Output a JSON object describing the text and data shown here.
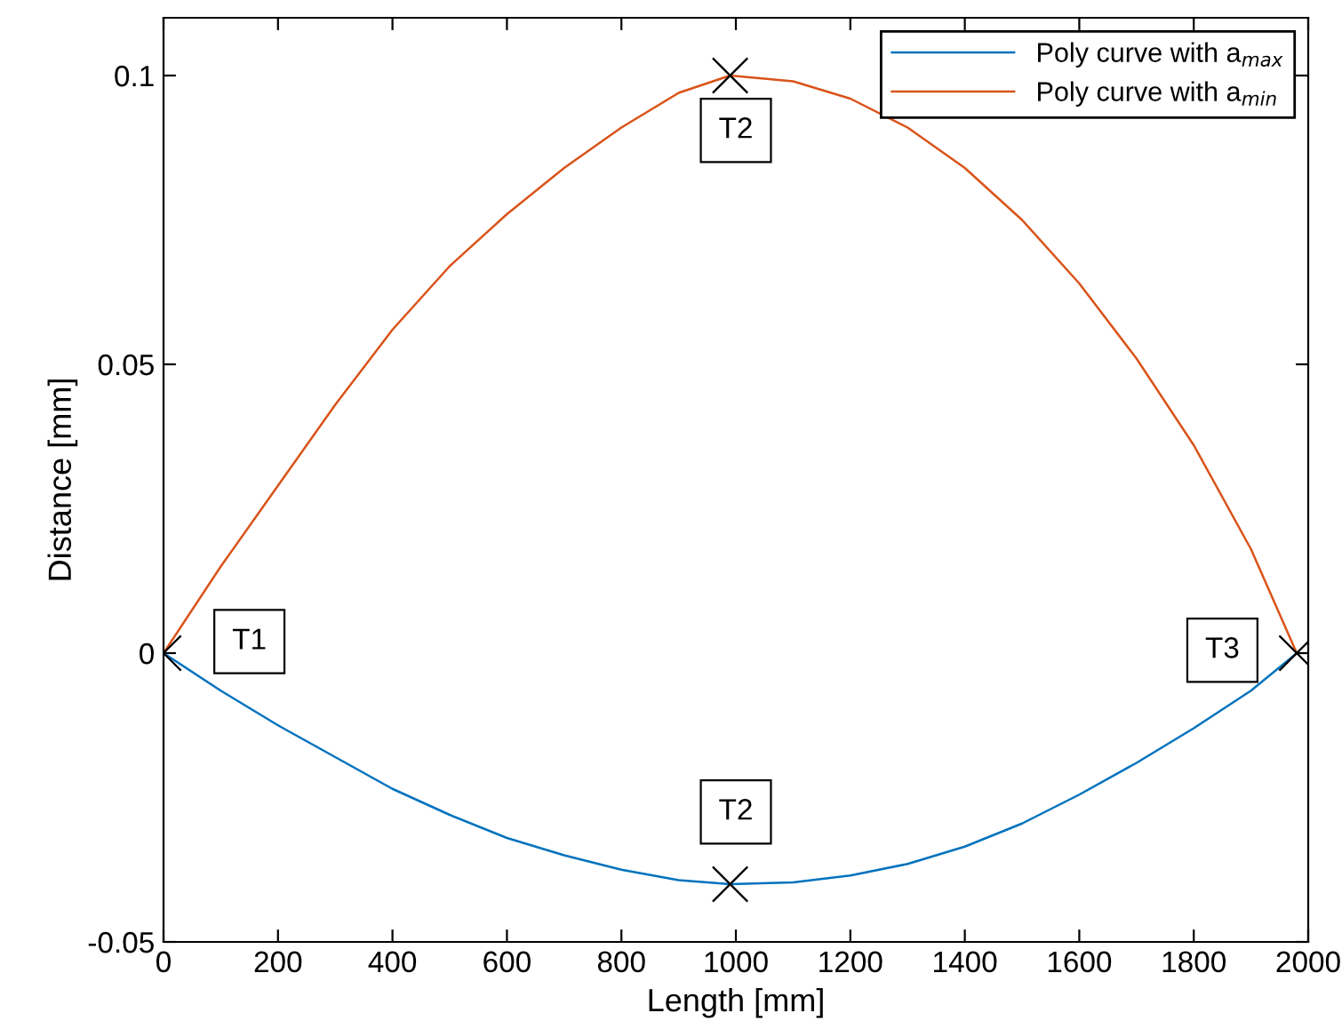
{
  "chart_data": {
    "type": "line",
    "xlabel": "Length [mm]",
    "ylabel": "Distance [mm]",
    "xlim": [
      0,
      2000
    ],
    "xticks": [
      0,
      200,
      400,
      600,
      800,
      1000,
      1200,
      1400,
      1600,
      1800,
      2000
    ],
    "ylim": [
      -0.05,
      0.11
    ],
    "yticks": [
      -0.05,
      0,
      0.05,
      0.1
    ],
    "grid": false,
    "legend": "top right",
    "marker": "none",
    "line_style": "solid",
    "series": [
      {
        "name": "Poly curve with a$_{max}$",
        "color": "#0072bd",
        "x": [
          0,
          100,
          200,
          300,
          400,
          500,
          600,
          700,
          800,
          900,
          990,
          1100,
          1200,
          1300,
          1400,
          1500,
          1600,
          1700,
          1800,
          1900,
          1980
        ],
        "values": [
          0,
          -0.0065,
          -0.0125,
          -0.018,
          -0.0235,
          -0.028,
          -0.032,
          -0.035,
          -0.0375,
          -0.0393,
          -0.04,
          -0.0397,
          -0.0385,
          -0.0365,
          -0.0335,
          -0.0295,
          -0.0245,
          -0.019,
          -0.013,
          -0.0065,
          0
        ]
      },
      {
        "name": "Poly curve with a$_{min}$",
        "color": "#d95319",
        "x": [
          0,
          100,
          200,
          300,
          400,
          500,
          600,
          700,
          800,
          900,
          990,
          1100,
          1200,
          1300,
          1400,
          1500,
          1600,
          1700,
          1800,
          1900,
          1980
        ],
        "values": [
          0,
          0.015,
          0.029,
          0.043,
          0.056,
          0.067,
          0.076,
          0.084,
          0.091,
          0.097,
          0.1,
          0.099,
          0.096,
          0.091,
          0.084,
          0.075,
          0.064,
          0.051,
          0.036,
          0.018,
          0
        ]
      },
      {
        "type": "scatter",
        "color": "#000000",
        "marker": "cross",
        "x": [
          0,
          990,
          990,
          1980
        ],
        "values": [
          0,
          0.1,
          -0.04,
          0
        ]
      }
    ],
    "annotations": [
      {
        "text": "T1",
        "x": 150,
        "y": 0.002
      },
      {
        "text": "T2",
        "x": 1000,
        "y": 0.0905
      },
      {
        "text": "T2",
        "x": 1000,
        "y": -0.0275
      },
      {
        "text": "T3",
        "x": 1850,
        "y": 0.0005
      }
    ]
  }
}
